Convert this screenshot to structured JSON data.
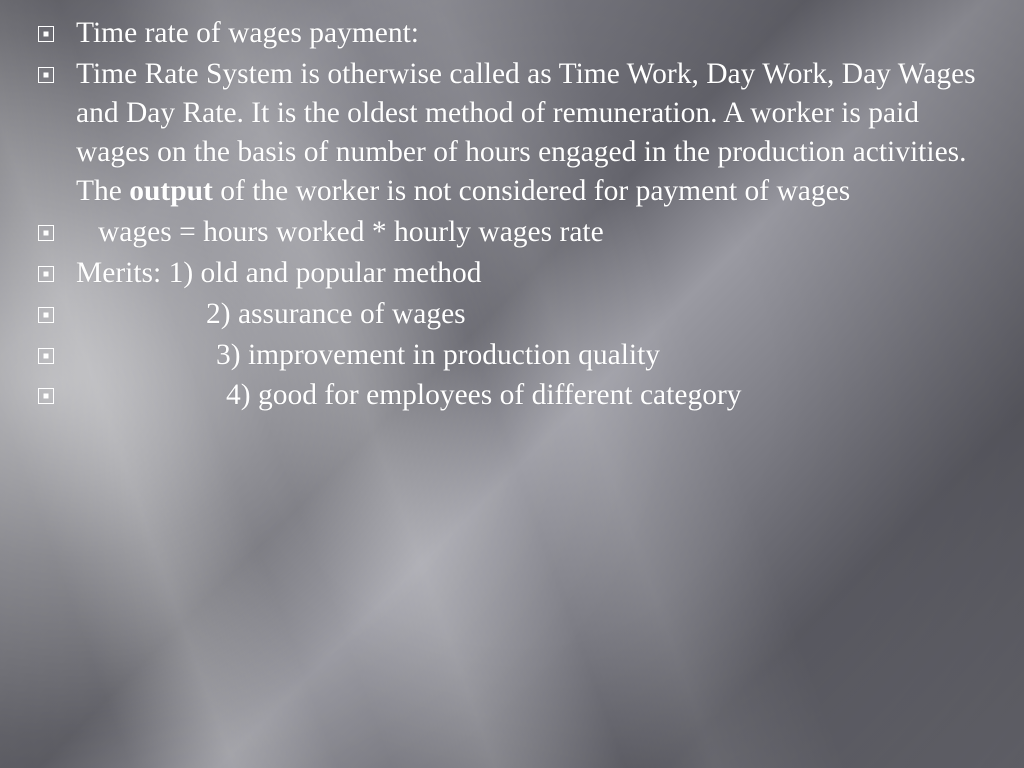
{
  "slide": {
    "bullets": [
      {
        "text": "Time rate of wages payment:",
        "indent": 0,
        "hasBold": false
      },
      {
        "text": "Time Rate System is otherwise called as Time Work, Day Work, Day Wages and Day Rate. It is the oldest method of remuneration. A worker is paid wages on the basis of number of hours engaged in the production activities. The <b>output</b> of the worker is not considered for payment of wages",
        "indent": 0,
        "hasBold": true
      },
      {
        "text": "    wages = hours worked * hourly wages rate",
        "indent": 1,
        "hasBold": false
      },
      {
        "text": "Merits:   1) old and popular method",
        "indent": 0,
        "hasBold": false
      },
      {
        "text": "2) assurance of wages",
        "indent": 2,
        "hasBold": false
      },
      {
        "text": "3) improvement in production quality",
        "indent": 3,
        "hasBold": false
      },
      {
        "text": "4) good for employees of different category",
        "indent": 4,
        "hasBold": false
      }
    ]
  },
  "style": {
    "text_color": "#ffffff",
    "font_family": "Palatino Linotype",
    "font_size_pt": 22,
    "bullet_border_color": "#ffffff",
    "bullet_dot_color": "#ffffff",
    "background_gradient": [
      "#64646c",
      "#8c8c94",
      "#63636b",
      "#9a9aa2",
      "#5c5c64",
      "#6d6d75"
    ]
  }
}
